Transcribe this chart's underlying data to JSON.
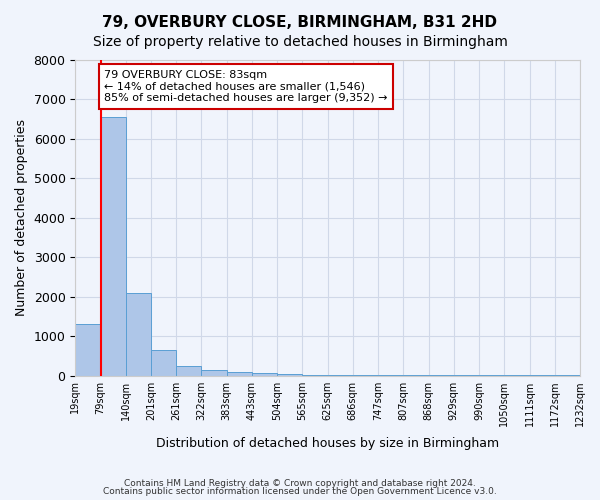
{
  "title1": "79, OVERBURY CLOSE, BIRMINGHAM, B31 2HD",
  "title2": "Size of property relative to detached houses in Birmingham",
  "xlabel": "Distribution of detached houses by size in Birmingham",
  "ylabel": "Number of detached properties",
  "bin_labels": [
    "19sqm",
    "79sqm",
    "140sqm",
    "201sqm",
    "261sqm",
    "322sqm",
    "383sqm",
    "443sqm",
    "504sqm",
    "565sqm",
    "625sqm",
    "686sqm",
    "747sqm",
    "807sqm",
    "868sqm",
    "929sqm",
    "990sqm",
    "1050sqm",
    "1111sqm",
    "1172sqm",
    "1232sqm"
  ],
  "bar_values": [
    1300,
    6550,
    2080,
    650,
    250,
    130,
    90,
    60,
    40,
    25,
    18,
    12,
    8,
    6,
    5,
    4,
    3,
    2,
    1,
    1
  ],
  "bar_color": "#aec6e8",
  "bar_edge_color": "#5a9fd4",
  "grid_color": "#d0d8e8",
  "annotation_text": "79 OVERBURY CLOSE: 83sqm\n← 14% of detached houses are smaller (1,546)\n85% of semi-detached houses are larger (9,352) →",
  "annotation_box_color": "#ffffff",
  "annotation_border_color": "#cc0000",
  "footer1": "Contains HM Land Registry data © Crown copyright and database right 2024.",
  "footer2": "Contains public sector information licensed under the Open Government Licence v3.0.",
  "ylim": [
    0,
    8000
  ],
  "title_fontsize": 11,
  "subtitle_fontsize": 10,
  "background_color": "#f0f4fc"
}
